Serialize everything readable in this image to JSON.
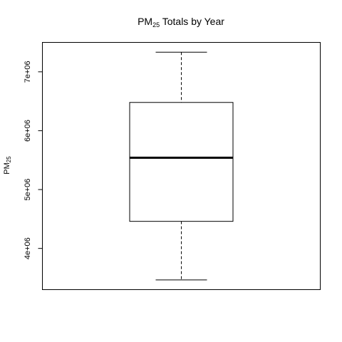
{
  "chart_data": {
    "type": "boxplot",
    "title": {
      "main": "PM",
      "sub": "25",
      "rest": " Totals by Year"
    },
    "ylabel": {
      "main": "PM",
      "sub": "25"
    },
    "xlabel": "",
    "ylim": [
      3300000,
      7500000
    ],
    "y_ticks": [
      4000000,
      5000000,
      6000000,
      7000000
    ],
    "y_tick_labels": [
      "4e+06",
      "5e+06",
      "6e+06",
      "7e+06"
    ],
    "box": {
      "min": 3464206,
      "q1": 4460000,
      "median": 5540000,
      "q3": 6480000,
      "max": 7332967
    },
    "grid": false,
    "legend": "none",
    "colors": {
      "stroke": "#000000",
      "fill": "#ffffff"
    }
  }
}
